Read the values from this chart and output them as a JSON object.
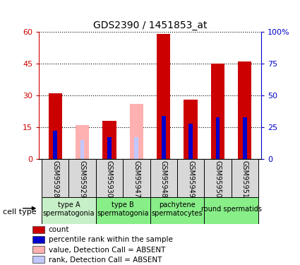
{
  "title": "GDS2390 / 1451853_at",
  "samples": [
    "GSM95928",
    "GSM95929",
    "GSM95930",
    "GSM95947",
    "GSM95948",
    "GSM95949",
    "GSM95950",
    "GSM95951"
  ],
  "count": [
    31,
    0,
    18,
    0,
    59,
    28,
    45,
    46
  ],
  "percentile": [
    22,
    0,
    17,
    0,
    34,
    28,
    33,
    33
  ],
  "absent_value": [
    0,
    16,
    0,
    26,
    0,
    0,
    0,
    0
  ],
  "absent_rank": [
    0,
    15,
    0,
    17,
    0,
    0,
    0,
    0
  ],
  "cell_type_groups": [
    {
      "label": "type A\nspermatogonia",
      "cols": [
        0,
        1
      ],
      "color": "#c8f0c8"
    },
    {
      "label": "type B\nspermatogonia",
      "cols": [
        2,
        3
      ],
      "color": "#88ee88"
    },
    {
      "label": "pachytene\nspermatocytes",
      "cols": [
        4,
        5
      ],
      "color": "#88ee88"
    },
    {
      "label": "round spermatids",
      "cols": [
        6,
        7
      ],
      "color": "#88ee88"
    }
  ],
  "ylim_left": [
    0,
    60
  ],
  "ylim_right": [
    0,
    100
  ],
  "yticks_left": [
    0,
    15,
    30,
    45,
    60
  ],
  "yticks_right": [
    0,
    25,
    50,
    75,
    100
  ],
  "ytick_labels_left": [
    "0",
    "15",
    "30",
    "45",
    "60"
  ],
  "ytick_labels_right": [
    "0",
    "25",
    "50",
    "75",
    "100%"
  ],
  "color_count": "#cc0000",
  "color_percentile": "#0000cc",
  "color_absent_value": "#ffb0b0",
  "color_absent_rank": "#c0c8ff",
  "bar_width": 0.5,
  "small_bar_width": 0.15,
  "sample_box_color": "#d8d8d8",
  "legend_items": [
    [
      "#cc0000",
      "count"
    ],
    [
      "#0000cc",
      "percentile rank within the sample"
    ],
    [
      "#ffb0b0",
      "value, Detection Call = ABSENT"
    ],
    [
      "#c0c8ff",
      "rank, Detection Call = ABSENT"
    ]
  ]
}
